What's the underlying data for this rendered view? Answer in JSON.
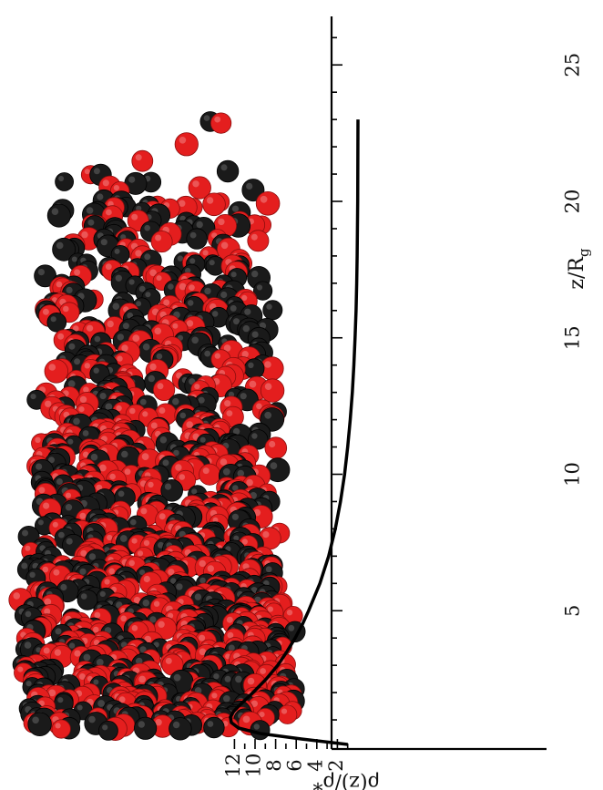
{
  "colors": {
    "red_bead": "#e41e1e",
    "black_bead": "#1a1a1a",
    "curve": "#000000"
  },
  "chart_data": {
    "type": "line",
    "orientation": "rotated-90",
    "xlabel": "z/R",
    "xlabel_subscript": "g",
    "ylabel": "ρ(z)/ρ*",
    "xlim": [
      0,
      26.5
    ],
    "ylim": [
      0,
      13.5
    ],
    "xticks": [
      5,
      10,
      15,
      20,
      25
    ],
    "yticks": [
      2,
      4,
      6,
      8,
      10,
      12
    ],
    "grid": false,
    "series": [
      {
        "x": [
          0.1,
          0.3,
          0.5,
          0.7,
          0.9,
          1.1,
          1.3,
          1.5,
          2,
          2.5,
          3,
          3.5,
          4,
          4.5,
          5,
          6,
          7,
          8,
          9,
          10,
          11,
          12,
          13,
          14,
          15,
          16,
          17,
          18,
          19,
          20,
          21,
          22,
          23
        ],
        "y": [
          1.0,
          5.5,
          9.5,
          11.6,
          12.3,
          12.4,
          12.1,
          11.6,
          10.2,
          8.9,
          7.8,
          6.9,
          6.1,
          5.4,
          4.8,
          3.7,
          2.85,
          2.2,
          1.7,
          1.3,
          1.0,
          0.75,
          0.55,
          0.4,
          0.28,
          0.19,
          0.12,
          0.08,
          0.05,
          0.03,
          0.02,
          0.01,
          0.0
        ]
      }
    ]
  }
}
